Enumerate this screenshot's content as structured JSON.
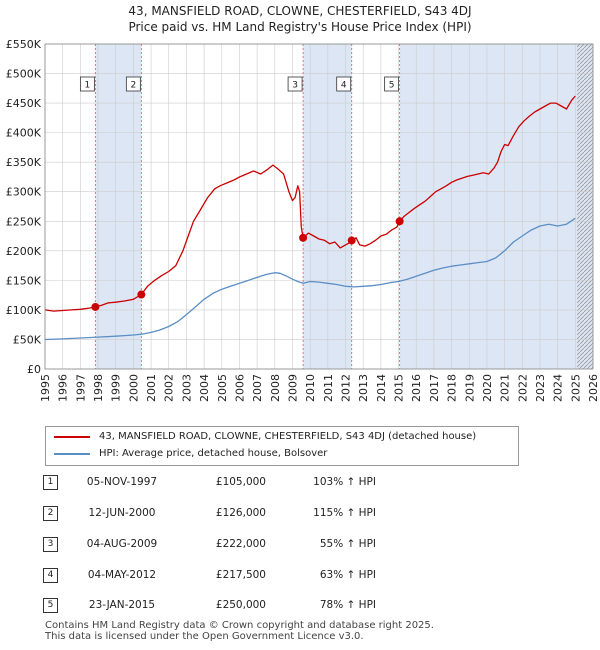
{
  "title_line1": "43, MANSFIELD ROAD, CLOWNE, CHESTERFIELD, S43 4DJ",
  "title_line2": "Price paid vs. HM Land Registry's House Price Index (HPI)",
  "colors": {
    "property": "#cc0000",
    "hpi": "#5b8ec6",
    "shade": "#dde6f5",
    "marker_line": "#dd6677",
    "grid": "#cccccc"
  },
  "chart_data": {
    "type": "line",
    "title": "43, MANSFIELD ROAD, CLOWNE, CHESTERFIELD, S43 4DJ — Price paid vs. HM Land Registry's House Price Index (HPI)",
    "xlabel": "",
    "ylabel": "",
    "xlim": [
      1995,
      2026
    ],
    "ylim": [
      0,
      550000
    ],
    "grid": true,
    "x_ticks": [
      "1995",
      "1996",
      "1997",
      "1998",
      "1999",
      "2000",
      "2001",
      "2002",
      "2003",
      "2004",
      "2005",
      "2006",
      "2007",
      "2008",
      "2009",
      "2010",
      "2011",
      "2012",
      "2013",
      "2014",
      "2015",
      "2016",
      "2017",
      "2018",
      "2019",
      "2020",
      "2021",
      "2022",
      "2023",
      "2024",
      "2025",
      "2026"
    ],
    "y_ticks": [
      {
        "value": 0,
        "label": "£0"
      },
      {
        "value": 50000,
        "label": "£50K"
      },
      {
        "value": 100000,
        "label": "£100K"
      },
      {
        "value": 150000,
        "label": "£150K"
      },
      {
        "value": 200000,
        "label": "£200K"
      },
      {
        "value": 250000,
        "label": "£250K"
      },
      {
        "value": 300000,
        "label": "£300K"
      },
      {
        "value": 350000,
        "label": "£350K"
      },
      {
        "value": 400000,
        "label": "£400K"
      },
      {
        "value": 450000,
        "label": "£450K"
      },
      {
        "value": 500000,
        "label": "£500K"
      },
      {
        "value": 550000,
        "label": "£550K"
      }
    ],
    "shaded_periods": [
      [
        1997.85,
        2000.45
      ],
      [
        2009.6,
        2012.35
      ],
      [
        2015.06,
        2026
      ]
    ],
    "hatched_future_from": 2025.1,
    "series": [
      {
        "name": "43, MANSFIELD ROAD, CLOWNE, CHESTERFIELD, S43 4DJ (detached house)",
        "color": "#cc0000",
        "x": [
          1995,
          1995.5,
          1996,
          1996.5,
          1997,
          1997.5,
          1997.85,
          1998.2,
          1998.6,
          1999,
          1999.5,
          2000,
          2000.45,
          2000.8,
          2001.2,
          2001.6,
          2002,
          2002.4,
          2002.8,
          2003.1,
          2003.4,
          2003.8,
          2004.2,
          2004.6,
          2004.9,
          2005.3,
          2005.7,
          2006,
          2006.4,
          2006.8,
          2007.2,
          2007.6,
          2007.9,
          2008.2,
          2008.5,
          2008.8,
          2009,
          2009.15,
          2009.3,
          2009.4,
          2009.5,
          2009.6,
          2009.9,
          2010.2,
          2010.5,
          2010.8,
          2011.1,
          2011.4,
          2011.7,
          2012.0,
          2012.2,
          2012.35,
          2012.6,
          2012.8,
          2013.1,
          2013.4,
          2013.7,
          2014,
          2014.3,
          2014.6,
          2014.9,
          2015.06,
          2015.3,
          2015.6,
          2015.9,
          2016.2,
          2016.5,
          2016.8,
          2017.1,
          2017.4,
          2017.7,
          2018,
          2018.3,
          2018.6,
          2018.9,
          2019.2,
          2019.5,
          2019.8,
          2020.1,
          2020.4,
          2020.6,
          2020.8,
          2021,
          2021.2,
          2021.5,
          2021.8,
          2022.1,
          2022.4,
          2022.7,
          2023,
          2023.3,
          2023.6,
          2023.9,
          2024.2,
          2024.5,
          2024.8,
          2025.0
        ],
        "values": [
          100000,
          98000,
          99000,
          100000,
          101000,
          103000,
          105000,
          108000,
          112000,
          113000,
          115000,
          118000,
          126000,
          140000,
          150000,
          158000,
          165000,
          175000,
          200000,
          225000,
          250000,
          270000,
          290000,
          305000,
          310000,
          315000,
          320000,
          325000,
          330000,
          335000,
          330000,
          338000,
          345000,
          338000,
          330000,
          300000,
          285000,
          290000,
          310000,
          300000,
          240000,
          222000,
          230000,
          225000,
          220000,
          218000,
          212000,
          215000,
          205000,
          210000,
          213000,
          217500,
          222000,
          210000,
          208000,
          212000,
          218000,
          225000,
          228000,
          235000,
          240000,
          250000,
          258000,
          265000,
          272000,
          278000,
          284000,
          292000,
          300000,
          305000,
          310000,
          316000,
          320000,
          323000,
          326000,
          328000,
          330000,
          332000,
          330000,
          340000,
          350000,
          368000,
          380000,
          378000,
          395000,
          410000,
          420000,
          428000,
          435000,
          440000,
          445000,
          450000,
          450000,
          445000,
          440000,
          455000,
          462000
        ]
      },
      {
        "name": "HPI: Average price, detached house, Bolsover",
        "color": "#5b8ec6",
        "x": [
          1995,
          1996,
          1997,
          1998,
          1999,
          2000,
          2000.5,
          2001,
          2001.5,
          2002,
          2002.5,
          2003,
          2003.5,
          2004,
          2004.5,
          2005,
          2005.5,
          2006,
          2006.5,
          2007,
          2007.5,
          2008,
          2008.3,
          2008.6,
          2009,
          2009.3,
          2009.6,
          2010,
          2010.5,
          2011,
          2011.5,
          2012,
          2012.5,
          2013,
          2013.5,
          2014,
          2014.5,
          2015,
          2015.5,
          2016,
          2016.5,
          2017,
          2017.5,
          2018,
          2018.5,
          2019,
          2019.5,
          2020,
          2020.5,
          2021,
          2021.5,
          2022,
          2022.5,
          2023,
          2023.5,
          2024,
          2024.5,
          2025.0
        ],
        "values": [
          50000,
          51000,
          52500,
          54000,
          55500,
          57500,
          59000,
          62000,
          66000,
          72000,
          80000,
          92000,
          105000,
          118000,
          128000,
          135000,
          140000,
          145000,
          150000,
          155000,
          160000,
          163000,
          162000,
          158000,
          152000,
          148000,
          145000,
          148000,
          147000,
          145000,
          143000,
          140000,
          139000,
          140000,
          141000,
          143000,
          146000,
          148000,
          152000,
          157000,
          162000,
          167000,
          171000,
          174000,
          176000,
          178000,
          180000,
          182000,
          188000,
          200000,
          215000,
          225000,
          235000,
          242000,
          245000,
          242000,
          245000,
          255000
        ]
      }
    ],
    "sale_points": [
      {
        "label": "1",
        "x": 1997.85,
        "value": 105000
      },
      {
        "label": "2",
        "x": 2000.45,
        "value": 126000
      },
      {
        "label": "3",
        "x": 2009.6,
        "value": 222000
      },
      {
        "label": "4",
        "x": 2012.35,
        "value": 217500
      },
      {
        "label": "5",
        "x": 2015.06,
        "value": 250000
      }
    ]
  },
  "legend": {
    "property": "43, MANSFIELD ROAD, CLOWNE, CHESTERFIELD, S43 4DJ (detached house)",
    "hpi": "HPI: Average price, detached house, Bolsover"
  },
  "sales": [
    {
      "num": "1",
      "date": "05-NOV-1997",
      "price": "£105,000",
      "hpi": "103% ↑ HPI"
    },
    {
      "num": "2",
      "date": "12-JUN-2000",
      "price": "£126,000",
      "hpi": "115% ↑ HPI"
    },
    {
      "num": "3",
      "date": "04-AUG-2009",
      "price": "£222,000",
      "hpi": "55% ↑ HPI"
    },
    {
      "num": "4",
      "date": "04-MAY-2012",
      "price": "£217,500",
      "hpi": "63% ↑ HPI"
    },
    {
      "num": "5",
      "date": "23-JAN-2015",
      "price": "£250,000",
      "hpi": "78% ↑ HPI"
    }
  ],
  "footer": {
    "line1": "Contains HM Land Registry data © Crown copyright and database right 2025.",
    "line2": "This data is licensed under the Open Government Licence v3.0."
  }
}
